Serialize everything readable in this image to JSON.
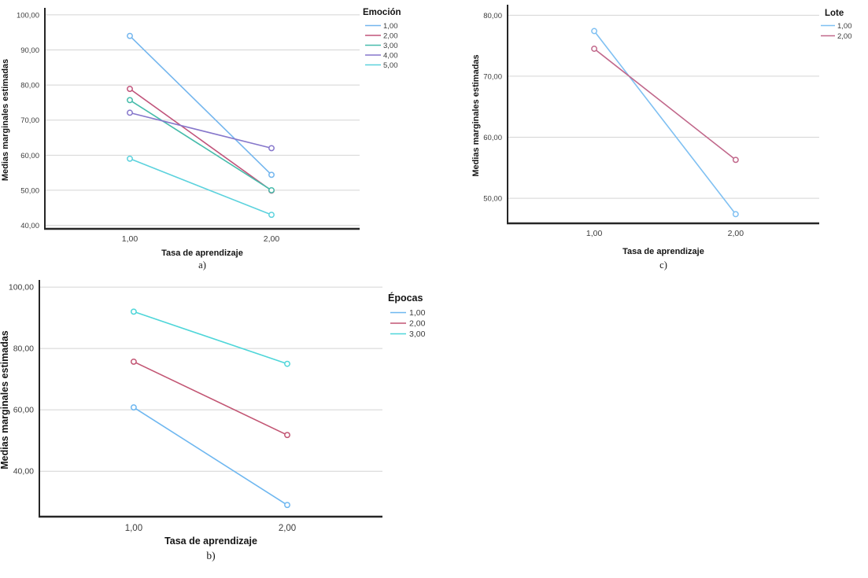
{
  "page": {
    "background": "#ffffff",
    "description_labels": {
      "caption_a": "a)",
      "caption_b": "b)",
      "caption_c": "c)"
    }
  },
  "style": {
    "axis_color": "#262626",
    "grid_color": "#d4d4d4",
    "tick_label_color": "#3c3c3c",
    "marker_fill": "#ffffff"
  },
  "chart_data": [
    {
      "id": "a",
      "type": "line",
      "caption": "a)",
      "xlabel": "Tasa de aprendizaje",
      "ylabel": "Medias marginales estimadas",
      "legend_title": "Emoción",
      "legend_position": "outside-top-right",
      "grid": "horizontal",
      "categories": [
        "1,00",
        "2,00"
      ],
      "ylim": [
        39.0,
        101.1
      ],
      "y_ticks": [
        {
          "value": 100,
          "label": "100,00"
        },
        {
          "value": 90,
          "label": "90,00"
        },
        {
          "value": 80,
          "label": "80,00"
        },
        {
          "value": 70,
          "label": "70,00"
        },
        {
          "value": 60,
          "label": "60,00"
        },
        {
          "value": 50,
          "label": "50,00"
        },
        {
          "value": 40,
          "label": "40,00"
        }
      ],
      "series": [
        {
          "name": "1,00",
          "color": "#74b6ee",
          "values": [
            94.0,
            54.4
          ]
        },
        {
          "name": "2,00",
          "color": "#c0537a",
          "values": [
            78.9,
            49.9
          ]
        },
        {
          "name": "3,00",
          "color": "#47bcab",
          "values": [
            75.7,
            50.0
          ]
        },
        {
          "name": "4,00",
          "color": "#8677cb",
          "values": [
            72.1,
            62.0
          ]
        },
        {
          "name": "5,00",
          "color": "#5cd2dd",
          "values": [
            59.0,
            43.0
          ]
        }
      ]
    },
    {
      "id": "b",
      "type": "line",
      "caption": "b)",
      "xlabel": "Tasa de aprendizaje",
      "ylabel": "Medias marginales estimadas",
      "legend_title": "Épocas",
      "legend_position": "outside-top-right",
      "grid": "horizontal",
      "categories": [
        "1,00",
        "2,00"
      ],
      "ylim": [
        25.2,
        101.3
      ],
      "y_ticks": [
        {
          "value": 100,
          "label": "100,00"
        },
        {
          "value": 80,
          "label": "80,00"
        },
        {
          "value": 60,
          "label": "60,00"
        },
        {
          "value": 40,
          "label": "40,00"
        }
      ],
      "series": [
        {
          "name": "1,00",
          "color": "#6eb7f0",
          "values": [
            60.8,
            29.0
          ]
        },
        {
          "name": "2,00",
          "color": "#c25573",
          "values": [
            75.7,
            51.8
          ]
        },
        {
          "name": "3,00",
          "color": "#4fd6d9",
          "values": [
            92.0,
            75.0
          ]
        }
      ]
    },
    {
      "id": "c",
      "type": "line",
      "caption": "c)",
      "xlabel": "Tasa de aprendizaje",
      "ylabel": "Medias marginales estimadas",
      "legend_title": "Lote",
      "legend_position": "outside-top-right",
      "grid": "horizontal",
      "categories": [
        "1,00",
        "2,00"
      ],
      "ylim": [
        45.9,
        81.2
      ],
      "y_ticks": [
        {
          "value": 80,
          "label": "80,00"
        },
        {
          "value": 70,
          "label": "70,00"
        },
        {
          "value": 60,
          "label": "60,00"
        },
        {
          "value": 50,
          "label": "50,00"
        }
      ],
      "series": [
        {
          "name": "1,00",
          "color": "#7fc0f2",
          "values": [
            77.4,
            47.4
          ]
        },
        {
          "name": "2,00",
          "color": "#c1688b",
          "values": [
            74.5,
            56.3
          ]
        }
      ]
    }
  ]
}
